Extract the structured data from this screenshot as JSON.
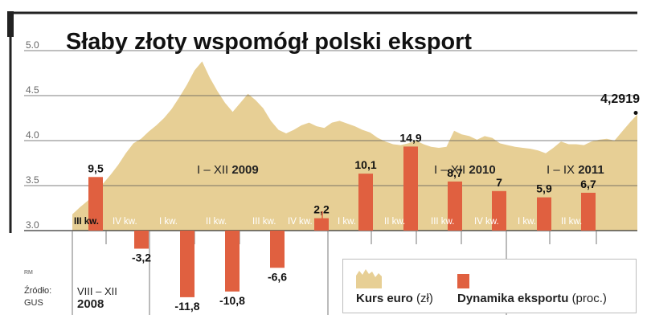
{
  "chart_data": {
    "type": "area+bar",
    "title": "Słaby złoty wspomógł polski eksport",
    "y_axis": {
      "ylim": [
        3.0,
        5.0
      ],
      "ticks": [
        "5.0",
        "4.5",
        "4.0",
        "3.5",
        "3.0"
      ],
      "tick_values": [
        5.0,
        4.5,
        4.0,
        3.5,
        3.0
      ],
      "grid": true
    },
    "series": [
      {
        "name": "Kurs euro",
        "type": "area",
        "unit": "zł",
        "color": "#e7cf95",
        "points": [
          [
            0,
            3.18
          ],
          [
            1,
            3.26
          ],
          [
            2,
            3.33
          ],
          [
            3,
            3.42
          ],
          [
            4,
            3.52
          ],
          [
            5,
            3.62
          ],
          [
            6,
            3.73
          ],
          [
            7,
            3.86
          ],
          [
            8,
            3.97
          ],
          [
            9,
            4.02
          ],
          [
            10,
            4.1
          ],
          [
            11,
            4.17
          ],
          [
            12,
            4.25
          ],
          [
            13,
            4.35
          ],
          [
            14,
            4.48
          ],
          [
            15,
            4.62
          ],
          [
            16,
            4.78
          ],
          [
            17,
            4.88
          ],
          [
            18,
            4.7
          ],
          [
            19,
            4.55
          ],
          [
            20,
            4.42
          ],
          [
            21,
            4.32
          ],
          [
            22,
            4.42
          ],
          [
            23,
            4.52
          ],
          [
            24,
            4.45
          ],
          [
            25,
            4.36
          ],
          [
            26,
            4.22
          ],
          [
            27,
            4.12
          ],
          [
            28,
            4.08
          ],
          [
            29,
            4.12
          ],
          [
            30,
            4.17
          ],
          [
            31,
            4.2
          ],
          [
            32,
            4.16
          ],
          [
            33,
            4.14
          ],
          [
            34,
            4.2
          ],
          [
            35,
            4.22
          ],
          [
            36,
            4.19
          ],
          [
            37,
            4.16
          ],
          [
            38,
            4.12
          ],
          [
            39,
            4.09
          ],
          [
            40,
            4.03
          ],
          [
            41,
            3.99
          ],
          [
            42,
            3.96
          ],
          [
            43,
            3.95
          ],
          [
            44,
            3.97
          ],
          [
            45,
            4.0
          ],
          [
            46,
            3.96
          ],
          [
            47,
            3.93
          ],
          [
            48,
            3.92
          ],
          [
            49,
            3.93
          ],
          [
            50,
            4.11
          ],
          [
            51,
            4.07
          ],
          [
            52,
            4.05
          ],
          [
            53,
            4.01
          ],
          [
            54,
            4.05
          ],
          [
            55,
            4.03
          ],
          [
            56,
            3.97
          ],
          [
            57,
            3.95
          ],
          [
            58,
            3.93
          ],
          [
            59,
            3.92
          ],
          [
            60,
            3.91
          ],
          [
            61,
            3.89
          ],
          [
            62,
            3.86
          ],
          [
            63,
            3.92
          ],
          [
            64,
            3.99
          ],
          [
            65,
            3.96
          ],
          [
            66,
            3.96
          ],
          [
            67,
            3.95
          ],
          [
            68,
            3.99
          ],
          [
            69,
            4.01
          ],
          [
            70,
            4.02
          ],
          [
            71,
            4.0
          ],
          [
            72,
            4.1
          ],
          [
            73,
            4.2
          ],
          [
            74,
            4.29
          ]
        ]
      },
      {
        "name": "Dynamika eksportu",
        "type": "bar",
        "unit": "proc.",
        "color": "#e06040",
        "categories": [
          "III kw.",
          "IV kw.",
          "I kw.",
          "II kw.",
          "III kw.",
          "IV kw.",
          "I kw.",
          "II kw.",
          "III kw.",
          "IV kw.",
          "I kw.",
          "II kw."
        ],
        "values": [
          9.5,
          -3.2,
          -11.8,
          -10.8,
          -6.6,
          2.2,
          10.1,
          14.9,
          8.7,
          7,
          5.9,
          6.7
        ],
        "labels": [
          "9,5",
          "-3,2",
          "-11,8",
          "-10,8",
          "-6,6",
          "2,2",
          "10,1",
          "14,9",
          "8,7",
          "7",
          "5,9",
          "6,7"
        ]
      }
    ],
    "period_labels": [
      {
        "text": "I – XII",
        "year": "2009"
      },
      {
        "text": "I – XII",
        "year": "2010"
      },
      {
        "text": "I – IX",
        "year": "2011"
      }
    ],
    "last_value_label": "4,2919",
    "bar_scale_units_per_px": 0.1424
  },
  "legend": {
    "area_label": "Kurs euro",
    "area_unit": "(zł)",
    "bar_label": "Dynamika eksportu",
    "bar_unit": "(proc.)"
  },
  "source": {
    "code": "RM",
    "label": "Źródło:",
    "name": "GUS"
  },
  "range_note": {
    "text": "VIII – XII",
    "year": "2008"
  },
  "colors": {
    "area": "#e7cf95",
    "bar": "#e06040",
    "grid": "#555555",
    "frame": "#222222"
  }
}
